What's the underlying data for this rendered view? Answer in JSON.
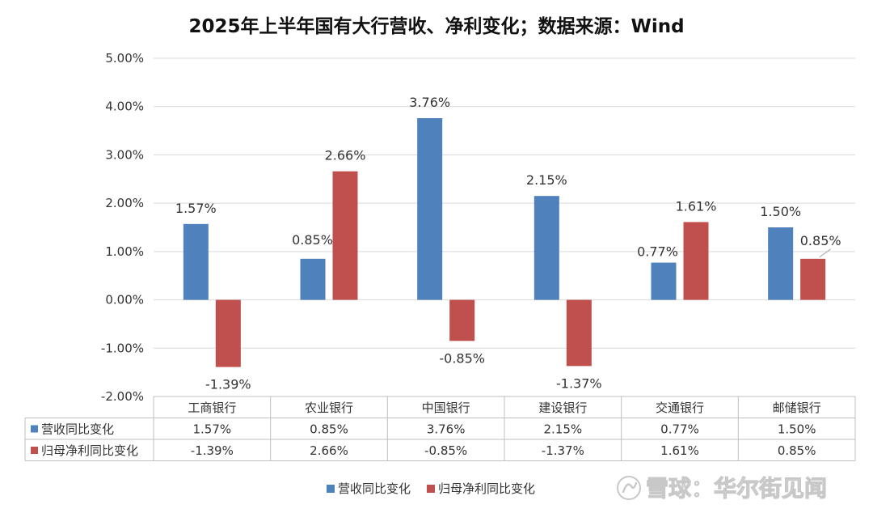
{
  "chart_data": {
    "type": "bar",
    "title": "2025年上半年国有大行营收、净利变化；数据来源：Wind",
    "categories": [
      "工商银行",
      "农业银行",
      "中国银行",
      "建设银行",
      "交通银行",
      "邮储银行"
    ],
    "series": [
      {
        "name": "营收同比变化",
        "color": "#4f81bd",
        "values": [
          1.57,
          0.85,
          3.76,
          2.15,
          0.77,
          1.5
        ],
        "labels": [
          "1.57%",
          "0.85%",
          "3.76%",
          "2.15%",
          "0.77%",
          "1.50%"
        ]
      },
      {
        "name": "归母净利同比变化",
        "color": "#c0504d",
        "values": [
          -1.39,
          2.66,
          -0.85,
          -1.37,
          1.61,
          0.85
        ],
        "labels": [
          "-1.39%",
          "2.66%",
          "-0.85%",
          "-1.37%",
          "1.61%",
          "0.85%"
        ]
      }
    ],
    "ylim": [
      -2,
      5
    ],
    "yticks": [
      "5.00%",
      "4.00%",
      "3.00%",
      "2.00%",
      "1.00%",
      "0.00%",
      "-1.00%",
      "-2.00%"
    ],
    "grid": true,
    "data_table": true,
    "legend_position": "bottom"
  },
  "watermark": {
    "icon": "xueqiu-logo-icon",
    "text": "雪球：华尔街见闻"
  }
}
